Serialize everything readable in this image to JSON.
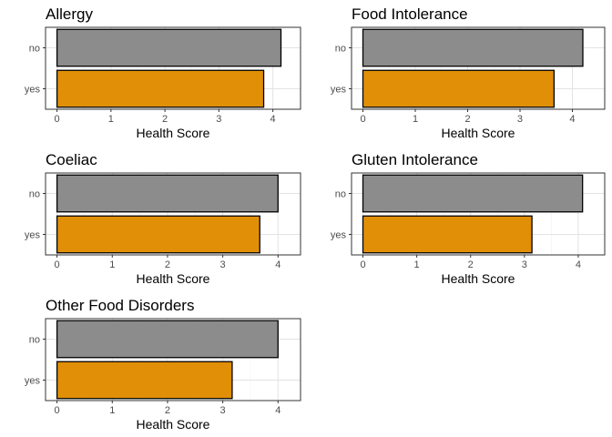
{
  "chart_data": [
    {
      "type": "bar",
      "orientation": "horizontal",
      "title": "Allergy",
      "categories": [
        "no",
        "yes"
      ],
      "values": [
        4.15,
        3.83
      ],
      "colors": [
        "#8c8c8c",
        "#e08f06"
      ],
      "xlabel": "Health Score",
      "ylabel": "",
      "xlim": [
        0,
        4.3
      ],
      "xticks": [
        0,
        1,
        2,
        3,
        4
      ],
      "grid": true,
      "legend": "none"
    },
    {
      "type": "bar",
      "orientation": "horizontal",
      "title": "Food Intolerance",
      "categories": [
        "no",
        "yes"
      ],
      "values": [
        4.2,
        3.65
      ],
      "colors": [
        "#8c8c8c",
        "#e08f06"
      ],
      "xlabel": "Health Score",
      "ylabel": "",
      "xlim": [
        0,
        4.4
      ],
      "xticks": [
        0,
        1,
        2,
        3,
        4
      ],
      "grid": true,
      "legend": "none"
    },
    {
      "type": "bar",
      "orientation": "horizontal",
      "title": "Coeliac",
      "categories": [
        "no",
        "yes"
      ],
      "values": [
        4.0,
        3.67
      ],
      "colors": [
        "#8c8c8c",
        "#e08f06"
      ],
      "xlabel": "Health Score",
      "ylabel": "",
      "xlim": [
        0,
        4.2
      ],
      "xticks": [
        0,
        1,
        2,
        3,
        4
      ],
      "grid": true,
      "legend": "none"
    },
    {
      "type": "bar",
      "orientation": "horizontal",
      "title": "Gluten Intolerance",
      "categories": [
        "no",
        "yes"
      ],
      "values": [
        4.08,
        3.14
      ],
      "colors": [
        "#8c8c8c",
        "#e08f06"
      ],
      "xlabel": "Health Score",
      "ylabel": "",
      "xlim": [
        0,
        4.28
      ],
      "xticks": [
        0,
        1,
        2,
        3,
        4
      ],
      "grid": true,
      "legend": "none"
    },
    {
      "type": "bar",
      "orientation": "horizontal",
      "title": "Other Food Disorders",
      "categories": [
        "no",
        "yes"
      ],
      "values": [
        4.0,
        3.17
      ],
      "colors": [
        "#8c8c8c",
        "#e08f06"
      ],
      "xlabel": "Health Score",
      "ylabel": "",
      "xlim": [
        0,
        4.2
      ],
      "xticks": [
        0,
        1,
        2,
        3,
        4
      ],
      "grid": true,
      "legend": "none"
    }
  ]
}
